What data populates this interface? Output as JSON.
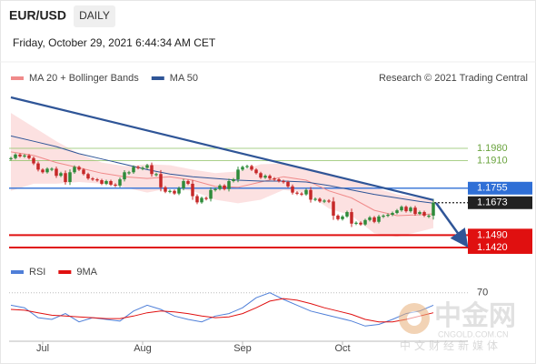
{
  "header": {
    "symbol": "EUR/USD",
    "period": "DAILY",
    "timestamp": "Friday, October 29, 2021 6:44:34 AM CET"
  },
  "chart_data": [
    {
      "type": "candlestick",
      "credit": "Research © 2021 Trading Central",
      "up_color": "#2e8b3a",
      "down_color": "#c62828",
      "close": [
        1.1925,
        1.1945,
        1.1935,
        1.194,
        1.1925,
        1.1895,
        1.186,
        1.1845,
        1.1865,
        1.1865,
        1.1825,
        1.184,
        1.179,
        1.1845,
        1.1875,
        1.186,
        1.1835,
        1.181,
        1.1805,
        1.18,
        1.178,
        1.1795,
        1.1775,
        1.177,
        1.1805,
        1.1845,
        1.1845,
        1.1875,
        1.187,
        1.187,
        1.1885,
        1.1835,
        1.1835,
        1.176,
        1.1735,
        1.174,
        1.1725,
        1.1755,
        1.1795,
        1.178,
        1.171,
        1.1675,
        1.17,
        1.1695,
        1.1745,
        1.175,
        1.177,
        1.175,
        1.1795,
        1.1805,
        1.186,
        1.1875,
        1.188,
        1.186,
        1.184,
        1.1815,
        1.1825,
        1.181,
        1.1805,
        1.1795,
        1.179,
        1.1765,
        1.173,
        1.1725,
        1.172,
        1.1745,
        1.169,
        1.1695,
        1.168,
        1.1685,
        1.168,
        1.16,
        1.158,
        1.1595,
        1.162,
        1.1555,
        1.156,
        1.155,
        1.1575,
        1.159,
        1.1565,
        1.1595,
        1.16,
        1.1605,
        1.1615,
        1.163,
        1.165,
        1.1625,
        1.1645,
        1.161,
        1.162,
        1.16,
        1.16,
        1.1673
      ],
      "series": [
        {
          "name": "MA 20 + Bollinger Bands",
          "color": "#f08a8a",
          "band_color": "#fbdada",
          "x": [
            0,
            5,
            10,
            15,
            20,
            25,
            30,
            35,
            40,
            45,
            50,
            55,
            60,
            65,
            70,
            75,
            80,
            85,
            90,
            93
          ],
          "values": [
            1.196,
            1.194,
            1.19,
            1.187,
            1.184,
            1.182,
            1.181,
            1.182,
            1.18,
            1.1765,
            1.176,
            1.179,
            1.182,
            1.18,
            1.174,
            1.17,
            1.163,
            1.16,
            1.1605,
            1.161
          ],
          "upper": [
            1.218,
            1.21,
            1.202,
            1.195,
            1.19,
            1.188,
            1.189,
            1.1885,
            1.186,
            1.184,
            1.185,
            1.189,
            1.1895,
            1.187,
            1.184,
            1.18,
            1.176,
            1.172,
            1.17,
            1.169
          ],
          "lower": [
            1.174,
            1.178,
            1.178,
            1.179,
            1.178,
            1.176,
            1.173,
            1.1755,
            1.174,
            1.169,
            1.167,
            1.169,
            1.1745,
            1.173,
            1.164,
            1.16,
            1.15,
            1.148,
            1.151,
            1.153
          ]
        },
        {
          "name": "MA 50",
          "color": "#2f5597",
          "x": [
            0,
            5,
            10,
            15,
            20,
            25,
            30,
            35,
            40,
            45,
            50,
            55,
            60,
            65,
            70,
            75,
            80,
            85,
            90,
            93
          ],
          "values": [
            1.205,
            1.202,
            1.199,
            1.195,
            1.192,
            1.189,
            1.186,
            1.1835,
            1.182,
            1.181,
            1.18,
            1.1795,
            1.1795,
            1.179,
            1.177,
            1.1745,
            1.172,
            1.17,
            1.168,
            1.167
          ]
        }
      ],
      "trendline": {
        "x": [
          0,
          93
        ],
        "values": [
          1.2268,
          1.1688
        ],
        "color": "#2f5597"
      },
      "levels": [
        {
          "value": 1.198,
          "label": "1.1980",
          "color": "#8dc063",
          "box": false
        },
        {
          "value": 1.191,
          "label": "1.1910",
          "color": "#8dc063",
          "box": false
        },
        {
          "value": 1.1755,
          "label": "1.1755",
          "color": "#2f6fd6",
          "box": true
        },
        {
          "value": 1.1673,
          "label": "1.1673",
          "color": "#222222",
          "box": true
        },
        {
          "value": 1.149,
          "label": "1.1490",
          "color": "#e01010",
          "box": true
        },
        {
          "value": 1.142,
          "label": "1.1420",
          "color": "#e01010",
          "box": true
        }
      ],
      "xlim": [
        -0.4,
        100.6
      ],
      "ylim": [
        1.1353,
        1.2304
      ],
      "xticks": [
        {
          "value": 7,
          "label": "Jul"
        },
        {
          "value": 29,
          "label": "Aug"
        },
        {
          "value": 51,
          "label": "Sep"
        },
        {
          "value": 73,
          "label": "Oct"
        }
      ]
    },
    {
      "type": "line",
      "series": [
        {
          "name": "RSI",
          "color": "#4f7fd8",
          "x": [
            0,
            3,
            6,
            9,
            12,
            15,
            18,
            21,
            24,
            27,
            30,
            33,
            36,
            39,
            42,
            45,
            48,
            51,
            54,
            57,
            60,
            63,
            66,
            69,
            72,
            75,
            78,
            81,
            84,
            87,
            90,
            93
          ],
          "values": [
            55,
            52,
            40,
            38,
            45,
            35,
            40,
            38,
            36,
            48,
            55,
            50,
            42,
            38,
            35,
            42,
            45,
            52,
            64,
            70,
            62,
            55,
            48,
            44,
            40,
            36,
            30,
            32,
            38,
            45,
            48,
            55
          ]
        },
        {
          "name": "9MA",
          "color": "#e01010",
          "x": [
            0,
            3,
            6,
            9,
            12,
            15,
            18,
            21,
            24,
            27,
            30,
            33,
            36,
            39,
            42,
            45,
            48,
            51,
            54,
            57,
            60,
            63,
            66,
            69,
            72,
            75,
            78,
            81,
            84,
            87,
            90,
            93
          ],
          "values": [
            50,
            49,
            46,
            43,
            42,
            41,
            40,
            39,
            39,
            42,
            46,
            48,
            47,
            45,
            42,
            40,
            41,
            45,
            52,
            60,
            63,
            61,
            57,
            52,
            48,
            44,
            38,
            35,
            35,
            38,
            42,
            46
          ]
        }
      ],
      "xlim": [
        -0.4,
        100.6
      ],
      "ylim": [
        15,
        85
      ],
      "yticks": [
        70
      ]
    }
  ],
  "watermark": {
    "name": "中金网",
    "tagline": "中文财经新媒体",
    "url": "CNGOLD.COM.CN"
  }
}
